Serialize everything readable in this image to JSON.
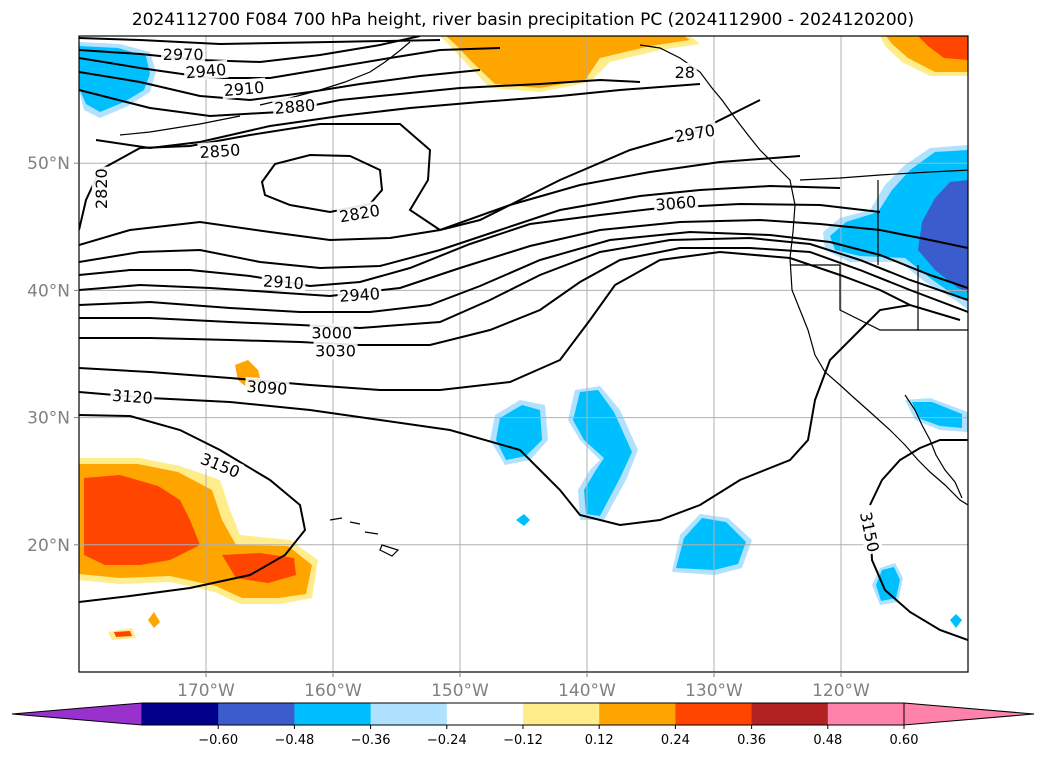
{
  "title": "2024112700 F084 700 hPa height, river basin precipitation PC (2024112900 - 2024120200)",
  "map": {
    "projection": "plate-carree",
    "lon_range": [
      -180,
      -110
    ],
    "lat_range": [
      10,
      60
    ],
    "lat_ticks": [
      {
        "lat": 50,
        "label": "50°N"
      },
      {
        "lat": 40,
        "label": "40°N"
      },
      {
        "lat": 30,
        "label": "30°N"
      },
      {
        "lat": 20,
        "label": "20°N"
      }
    ],
    "lon_ticks": [
      {
        "lon": -170,
        "label": "170°W"
      },
      {
        "lon": -160,
        "label": "160°W"
      },
      {
        "lon": -150,
        "label": "150°W"
      },
      {
        "lon": -140,
        "label": "140°W"
      },
      {
        "lon": -130,
        "label": "130°W"
      },
      {
        "lon": -120,
        "label": "120°W"
      }
    ],
    "grid": true
  },
  "contour_labels": [
    {
      "text": "2970",
      "lon": -171.8,
      "lat": 58.5,
      "angle": 0
    },
    {
      "text": "2940",
      "lon": -170.0,
      "lat": 57.2,
      "angle": -5
    },
    {
      "text": "2910",
      "lon": -167.0,
      "lat": 55.8,
      "angle": -5
    },
    {
      "text": "2880",
      "lon": -163.0,
      "lat": 54.4,
      "angle": -5
    },
    {
      "text": "2850",
      "lon": -168.9,
      "lat": 50.9,
      "angle": -4
    },
    {
      "text": "2820",
      "lon": -178.2,
      "lat": 48.0,
      "angle": -90
    },
    {
      "text": "2820",
      "lon": -157.9,
      "lat": 46.0,
      "angle": -10
    },
    {
      "text": "2910",
      "lon": -163.9,
      "lat": 40.6,
      "angle": 4
    },
    {
      "text": "2940",
      "lon": -157.9,
      "lat": 39.6,
      "angle": -4
    },
    {
      "text": "3000",
      "lon": -160.1,
      "lat": 36.6,
      "angle": 0
    },
    {
      "text": "3030",
      "lon": -159.8,
      "lat": 35.2,
      "angle": 0
    },
    {
      "text": "3090",
      "lon": -165.2,
      "lat": 32.3,
      "angle": 4
    },
    {
      "text": "3120",
      "lon": -175.8,
      "lat": 31.6,
      "angle": 4
    },
    {
      "text": "3150",
      "lon": -168.9,
      "lat": 26.2,
      "angle": 22
    },
    {
      "text": "3060",
      "lon": -133.0,
      "lat": 46.8,
      "angle": -5
    },
    {
      "text": "2970",
      "lon": -131.5,
      "lat": 52.3,
      "angle": -10
    },
    {
      "text": "28",
      "lon": -132.3,
      "lat": 57.1,
      "angle": 0
    },
    {
      "text": "3150",
      "lon": -117.8,
      "lat": 21.0,
      "angle": 78
    }
  ],
  "colorbar": {
    "colors": [
      "#9932cc",
      "#00008b",
      "#3a5ccc",
      "#00bfff",
      "#b0e2ff",
      "#ffffff",
      "#ffec8b",
      "#ffa500",
      "#ff4500",
      "#b22222",
      "#ff82ab",
      "#ff82ab"
    ],
    "tick_labels": [
      "−0.60",
      "−0.48",
      "−0.36",
      "−0.24",
      "−0.12",
      "0.12",
      "0.24",
      "0.36",
      "0.48",
      "0.60"
    ]
  }
}
